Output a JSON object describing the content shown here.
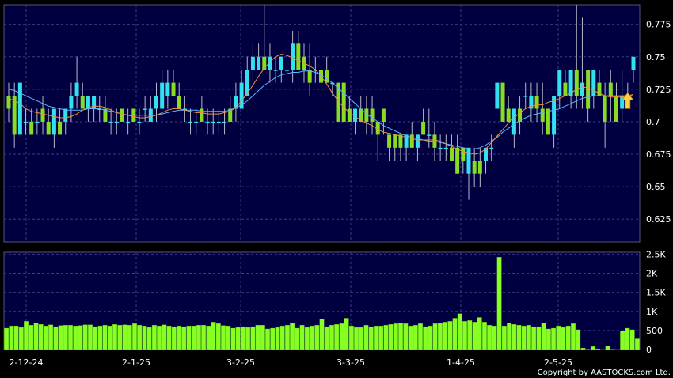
{
  "chart_data": [
    {
      "type": "candlestick",
      "panel": "price",
      "ylim": [
        0.6075,
        0.79
      ],
      "yticks": [
        "0.775",
        "0.75",
        "0.725",
        "0.7",
        "0.675",
        "0.65",
        "0.625"
      ],
      "ytick_values": [
        0.775,
        0.75,
        0.725,
        0.7,
        0.675,
        0.65,
        0.625
      ],
      "x_ticks": [
        "2-12-24",
        "2-1-25",
        "3-2-25",
        "3-3-25",
        "1-4-25",
        "2-5-25"
      ],
      "colors": {
        "background": "#000040",
        "up": "#33e0f0",
        "down": "#88dd22",
        "ma_fast": "#f09040",
        "ma_slow": "#58b8ff",
        "grid": "#3a3a80",
        "arrow": "#ffd040"
      },
      "series": [
        {
          "kind": "ohlc",
          "values": [
            [
              0.72,
              0.73,
              0.7,
              0.71
            ],
            [
              0.72,
              0.73,
              0.68,
              0.69
            ],
            [
              0.69,
              0.73,
              0.69,
              0.73
            ],
            [
              0.7,
              0.71,
              0.69,
              0.7
            ],
            [
              0.7,
              0.71,
              0.69,
              0.69
            ],
            [
              0.7,
              0.71,
              0.69,
              0.7
            ],
            [
              0.71,
              0.72,
              0.69,
              0.7
            ],
            [
              0.7,
              0.71,
              0.69,
              0.69
            ],
            [
              0.69,
              0.71,
              0.68,
              0.71
            ],
            [
              0.7,
              0.71,
              0.69,
              0.69
            ],
            [
              0.7,
              0.71,
              0.69,
              0.71
            ],
            [
              0.71,
              0.73,
              0.7,
              0.72
            ],
            [
              0.72,
              0.75,
              0.71,
              0.73
            ],
            [
              0.72,
              0.73,
              0.71,
              0.71
            ],
            [
              0.71,
              0.72,
              0.7,
              0.72
            ],
            [
              0.71,
              0.72,
              0.7,
              0.72
            ],
            [
              0.71,
              0.72,
              0.7,
              0.71
            ],
            [
              0.71,
              0.72,
              0.7,
              0.7
            ],
            [
              0.7,
              0.71,
              0.69,
              0.7
            ],
            [
              0.7,
              0.71,
              0.69,
              0.7
            ],
            [
              0.71,
              0.71,
              0.7,
              0.7
            ],
            [
              0.7,
              0.71,
              0.69,
              0.7
            ],
            [
              0.71,
              0.71,
              0.7,
              0.7
            ],
            [
              0.7,
              0.71,
              0.69,
              0.7
            ],
            [
              0.71,
              0.72,
              0.7,
              0.71
            ],
            [
              0.7,
              0.72,
              0.7,
              0.71
            ],
            [
              0.71,
              0.73,
              0.7,
              0.72
            ],
            [
              0.71,
              0.74,
              0.71,
              0.73
            ],
            [
              0.72,
              0.74,
              0.71,
              0.73
            ],
            [
              0.73,
              0.74,
              0.72,
              0.72
            ],
            [
              0.72,
              0.73,
              0.71,
              0.71
            ],
            [
              0.71,
              0.72,
              0.7,
              0.71
            ],
            [
              0.7,
              0.71,
              0.69,
              0.7
            ],
            [
              0.7,
              0.71,
              0.69,
              0.7
            ],
            [
              0.71,
              0.72,
              0.7,
              0.7
            ],
            [
              0.7,
              0.71,
              0.69,
              0.7
            ],
            [
              0.7,
              0.71,
              0.69,
              0.7
            ],
            [
              0.7,
              0.71,
              0.69,
              0.7
            ],
            [
              0.7,
              0.71,
              0.69,
              0.7
            ],
            [
              0.71,
              0.72,
              0.7,
              0.7
            ],
            [
              0.71,
              0.73,
              0.7,
              0.72
            ],
            [
              0.71,
              0.74,
              0.71,
              0.73
            ],
            [
              0.72,
              0.75,
              0.72,
              0.74
            ],
            [
              0.74,
              0.76,
              0.73,
              0.75
            ],
            [
              0.74,
              0.76,
              0.74,
              0.75
            ],
            [
              0.75,
              0.79,
              0.74,
              0.74
            ],
            [
              0.74,
              0.76,
              0.73,
              0.75
            ],
            [
              0.74,
              0.75,
              0.73,
              0.74
            ],
            [
              0.74,
              0.75,
              0.73,
              0.75
            ],
            [
              0.74,
              0.76,
              0.73,
              0.74
            ],
            [
              0.74,
              0.77,
              0.73,
              0.76
            ],
            [
              0.76,
              0.77,
              0.74,
              0.74
            ],
            [
              0.75,
              0.76,
              0.73,
              0.74
            ],
            [
              0.74,
              0.76,
              0.72,
              0.73
            ],
            [
              0.74,
              0.75,
              0.73,
              0.74
            ],
            [
              0.74,
              0.75,
              0.73,
              0.73
            ],
            [
              0.74,
              0.75,
              0.73,
              0.73
            ],
            [
              0.73,
              0.73,
              0.72,
              0.73
            ],
            [
              0.73,
              0.73,
              0.7,
              0.7
            ],
            [
              0.73,
              0.73,
              0.7,
              0.7
            ],
            [
              0.71,
              0.72,
              0.7,
              0.7
            ],
            [
              0.7,
              0.71,
              0.69,
              0.71
            ],
            [
              0.71,
              0.72,
              0.7,
              0.7
            ],
            [
              0.71,
              0.72,
              0.69,
              0.7
            ],
            [
              0.71,
              0.72,
              0.69,
              0.7
            ],
            [
              0.7,
              0.7,
              0.67,
              0.69
            ],
            [
              0.71,
              0.71,
              0.69,
              0.7
            ],
            [
              0.69,
              0.69,
              0.67,
              0.68
            ],
            [
              0.69,
              0.69,
              0.67,
              0.68
            ],
            [
              0.69,
              0.69,
              0.67,
              0.68
            ],
            [
              0.68,
              0.69,
              0.67,
              0.69
            ],
            [
              0.69,
              0.7,
              0.68,
              0.68
            ],
            [
              0.68,
              0.69,
              0.67,
              0.69
            ],
            [
              0.7,
              0.71,
              0.69,
              0.69
            ],
            [
              0.69,
              0.71,
              0.68,
              0.69
            ],
            [
              0.69,
              0.7,
              0.67,
              0.68
            ],
            [
              0.68,
              0.69,
              0.67,
              0.68
            ],
            [
              0.68,
              0.69,
              0.67,
              0.68
            ],
            [
              0.68,
              0.69,
              0.67,
              0.67
            ],
            [
              0.68,
              0.69,
              0.66,
              0.66
            ],
            [
              0.68,
              0.68,
              0.66,
              0.67
            ],
            [
              0.66,
              0.68,
              0.64,
              0.68
            ],
            [
              0.67,
              0.68,
              0.65,
              0.66
            ],
            [
              0.67,
              0.68,
              0.65,
              0.66
            ],
            [
              0.67,
              0.68,
              0.66,
              0.68
            ],
            [
              0.68,
              0.69,
              0.67,
              0.68
            ],
            [
              0.71,
              0.73,
              0.71,
              0.73
            ],
            [
              0.73,
              0.73,
              0.71,
              0.7
            ],
            [
              0.71,
              0.72,
              0.7,
              0.7
            ],
            [
              0.69,
              0.71,
              0.68,
              0.71
            ],
            [
              0.71,
              0.72,
              0.69,
              0.7
            ],
            [
              0.72,
              0.73,
              0.71,
              0.72
            ],
            [
              0.71,
              0.73,
              0.7,
              0.72
            ],
            [
              0.72,
              0.73,
              0.7,
              0.71
            ],
            [
              0.71,
              0.73,
              0.69,
              0.7
            ],
            [
              0.71,
              0.71,
              0.69,
              0.69
            ],
            [
              0.69,
              0.72,
              0.68,
              0.72
            ],
            [
              0.72,
              0.74,
              0.71,
              0.74
            ],
            [
              0.73,
              0.74,
              0.72,
              0.72
            ],
            [
              0.72,
              0.74,
              0.71,
              0.74
            ],
            [
              0.74,
              0.79,
              0.71,
              0.72
            ],
            [
              0.72,
              0.78,
              0.71,
              0.73
            ],
            [
              0.74,
              0.74,
              0.7,
              0.71
            ],
            [
              0.72,
              0.74,
              0.71,
              0.74
            ],
            [
              0.73,
              0.74,
              0.72,
              0.72
            ],
            [
              0.72,
              0.73,
              0.68,
              0.7
            ],
            [
              0.73,
              0.74,
              0.7,
              0.72
            ],
            [
              0.72,
              0.73,
              0.7,
              0.7
            ],
            [
              0.71,
              0.74,
              0.7,
              0.72
            ],
            [
              0.72,
              0.73,
              0.72,
              0.72
            ],
            [
              0.74,
              0.75,
              0.73,
              0.75
            ]
          ]
        },
        {
          "name": "",
          "kind": "ma_fast",
          "values": [
            0.718,
            0.716,
            0.714,
            0.71,
            0.708,
            0.707,
            0.706,
            0.705,
            0.704,
            0.703,
            0.703,
            0.704,
            0.706,
            0.709,
            0.711,
            0.712,
            0.712,
            0.711,
            0.709,
            0.707,
            0.706,
            0.705,
            0.704,
            0.703,
            0.703,
            0.704,
            0.705,
            0.707,
            0.709,
            0.71,
            0.71,
            0.709,
            0.708,
            0.707,
            0.707,
            0.706,
            0.706,
            0.706,
            0.707,
            0.708,
            0.711,
            0.716,
            0.722,
            0.728,
            0.735,
            0.741,
            0.746,
            0.75,
            0.752,
            0.751,
            0.749,
            0.747,
            0.745,
            0.743,
            0.74,
            0.735,
            0.729,
            0.722,
            0.716,
            0.711,
            0.707,
            0.704,
            0.701,
            0.699,
            0.697,
            0.694,
            0.692,
            0.691,
            0.69,
            0.689,
            0.688,
            0.687,
            0.686,
            0.686,
            0.686,
            0.686,
            0.685,
            0.683,
            0.681,
            0.679,
            0.677,
            0.676,
            0.675,
            0.676,
            0.679,
            0.684,
            0.689,
            0.694,
            0.699,
            0.703,
            0.707,
            0.71,
            0.712,
            0.713,
            0.713,
            0.715,
            0.716,
            0.718,
            0.72,
            0.722,
            0.725,
            0.727,
            0.726,
            0.724,
            0.722,
            0.72,
            0.719,
            0.719,
            0.719,
            0.72,
            0.721
          ]
        },
        {
          "name": "",
          "kind": "ma_slow",
          "values": [
            0.725,
            0.724,
            0.722,
            0.72,
            0.718,
            0.716,
            0.714,
            0.712,
            0.711,
            0.71,
            0.709,
            0.709,
            0.709,
            0.709,
            0.71,
            0.71,
            0.71,
            0.709,
            0.708,
            0.707,
            0.706,
            0.705,
            0.705,
            0.705,
            0.705,
            0.705,
            0.705,
            0.706,
            0.707,
            0.708,
            0.709,
            0.709,
            0.709,
            0.709,
            0.708,
            0.708,
            0.708,
            0.708,
            0.708,
            0.709,
            0.711,
            0.713,
            0.716,
            0.72,
            0.724,
            0.728,
            0.731,
            0.734,
            0.736,
            0.737,
            0.738,
            0.738,
            0.739,
            0.739,
            0.738,
            0.736,
            0.733,
            0.73,
            0.726,
            0.722,
            0.718,
            0.714,
            0.71,
            0.706,
            0.703,
            0.7,
            0.697,
            0.695,
            0.693,
            0.691,
            0.689,
            0.688,
            0.687,
            0.686,
            0.685,
            0.685,
            0.684,
            0.683,
            0.682,
            0.681,
            0.68,
            0.679,
            0.679,
            0.68,
            0.682,
            0.685,
            0.688,
            0.692,
            0.695,
            0.698,
            0.701,
            0.703,
            0.705,
            0.706,
            0.707,
            0.708,
            0.709,
            0.71,
            0.712,
            0.714,
            0.716,
            0.718,
            0.719,
            0.72,
            0.72,
            0.72,
            0.72,
            0.72,
            0.72,
            0.72,
            0.72
          ]
        }
      ],
      "arrow_marker": {
        "index": 109,
        "value": 0.715
      }
    },
    {
      "type": "bar",
      "panel": "volume",
      "ylim": [
        0,
        2550
      ],
      "yticks": [
        "2.5K",
        "2K",
        "1.5K",
        "1K",
        "500",
        "0"
      ],
      "ytick_values": [
        2500,
        2000,
        1500,
        1000,
        500,
        0
      ],
      "values": [
        560,
        620,
        620,
        580,
        740,
        640,
        700,
        660,
        620,
        650,
        600,
        630,
        640,
        640,
        620,
        630,
        650,
        650,
        600,
        620,
        640,
        620,
        660,
        640,
        650,
        640,
        680,
        640,
        620,
        580,
        640,
        620,
        650,
        620,
        600,
        620,
        600,
        620,
        620,
        640,
        640,
        620,
        720,
        680,
        630,
        620,
        560,
        580,
        600,
        580,
        600,
        640,
        640,
        540,
        560,
        580,
        620,
        640,
        700,
        560,
        640,
        580,
        620,
        640,
        800,
        600,
        640,
        660,
        680,
        820,
        620,
        580,
        580,
        640,
        600,
        620,
        620,
        640,
        660,
        680,
        700,
        680,
        620,
        640,
        680,
        600,
        620,
        680,
        700,
        720,
        740,
        820,
        940,
        740,
        760,
        720,
        840,
        720,
        640,
        620,
        2420,
        620,
        700,
        660,
        640,
        620,
        640,
        600,
        600,
        700,
        540,
        560,
        620,
        580,
        620,
        680,
        520,
        40,
        10,
        80,
        20,
        0,
        90,
        10,
        0,
        480,
        560,
        520,
        280
      ],
      "colors": {
        "bar": "#88ff22",
        "bar_edge": "#4aa010"
      }
    }
  ],
  "copyright": "Copyright by AASTOCKS.com Ltd."
}
